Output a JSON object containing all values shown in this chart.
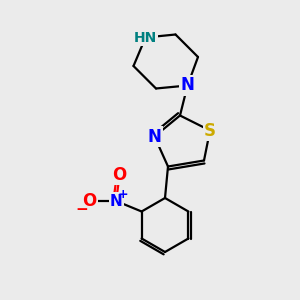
{
  "background_color": "#ebebeb",
  "bond_color": "#000000",
  "atom_colors": {
    "N": "#0000ff",
    "S": "#ccaa00",
    "O": "#ff0000",
    "NH": "#008080",
    "C": "#000000"
  },
  "line_width": 1.6
}
